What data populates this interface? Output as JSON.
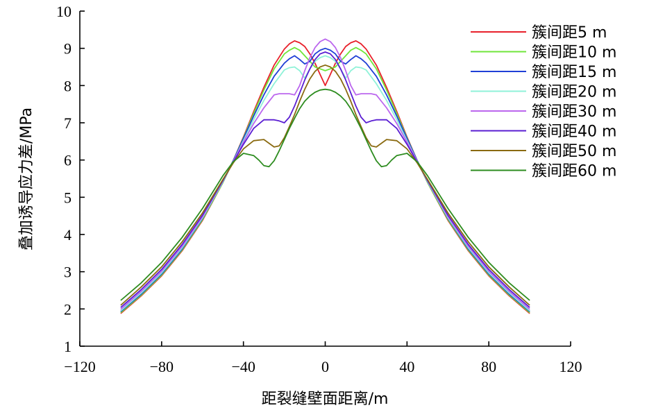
{
  "chart_data": {
    "type": "line",
    "title": "",
    "xlabel": "距裂缝壁面距离/m",
    "ylabel": "叠加诱导应力差/MPa",
    "xlim": [
      -120,
      120
    ],
    "ylim": [
      1,
      10
    ],
    "xticks": [
      -120,
      -80,
      -40,
      0,
      40,
      80,
      120
    ],
    "xtick_labels": [
      "−120",
      "−80",
      "−40",
      "0",
      "40",
      "80",
      "120"
    ],
    "yticks": [
      1,
      2,
      3,
      4,
      5,
      6,
      7,
      8,
      9,
      10
    ],
    "ytick_labels": [
      "1",
      "2",
      "3",
      "4",
      "5",
      "6",
      "7",
      "8",
      "9",
      "10"
    ],
    "grid": false,
    "legend_position": "top-right",
    "series": [
      {
        "name": "簇间距5 m",
        "color": "#e8202a",
        "x": [
          0,
          2.5,
          5,
          7.5,
          10,
          12.5,
          15,
          17.5,
          20,
          25,
          30,
          35,
          40,
          45,
          50,
          60,
          70,
          80,
          90,
          100
        ],
        "y": [
          8.0,
          8.3,
          8.6,
          8.85,
          9.05,
          9.15,
          9.2,
          9.12,
          8.98,
          8.55,
          7.95,
          7.3,
          6.62,
          5.98,
          5.4,
          4.38,
          3.56,
          2.89,
          2.35,
          1.88
        ]
      },
      {
        "name": "簇间距10 m",
        "color": "#6fe63a",
        "x": [
          0,
          2.5,
          5,
          7.5,
          10,
          12.5,
          15,
          17.5,
          20,
          25,
          30,
          35,
          40,
          45,
          50,
          60,
          70,
          80,
          90,
          100
        ],
        "y": [
          8.4,
          8.45,
          8.5,
          8.65,
          8.8,
          8.95,
          9.02,
          8.95,
          8.85,
          8.45,
          7.88,
          7.25,
          6.6,
          5.98,
          5.4,
          4.4,
          3.58,
          2.91,
          2.37,
          1.9
        ]
      },
      {
        "name": "簇间距15 m",
        "color": "#1f3fd6",
        "x": [
          0,
          2.5,
          5,
          7.5,
          10,
          12.5,
          15,
          17.5,
          20,
          25,
          30,
          35,
          40,
          45,
          50,
          60,
          70,
          80,
          90,
          100
        ],
        "y": [
          9.0,
          8.95,
          8.85,
          8.65,
          8.58,
          8.7,
          8.8,
          8.72,
          8.6,
          8.25,
          7.75,
          7.18,
          6.58,
          5.98,
          5.42,
          4.43,
          3.61,
          2.94,
          2.4,
          1.93
        ]
      },
      {
        "name": "簇间距20 m",
        "color": "#8ff2d8",
        "x": [
          0,
          2.5,
          5,
          7.5,
          10,
          12.5,
          15,
          17.5,
          20,
          25,
          30,
          35,
          40,
          45,
          50,
          60,
          70,
          80,
          90,
          100
        ],
        "y": [
          8.8,
          8.75,
          8.65,
          8.45,
          8.2,
          8.4,
          8.5,
          8.48,
          8.42,
          8.05,
          7.6,
          7.08,
          6.52,
          5.96,
          5.42,
          4.45,
          3.64,
          2.97,
          2.43,
          1.95
        ]
      },
      {
        "name": "簇间距30 m",
        "color": "#bb66ee",
        "x": [
          0,
          2.5,
          5,
          7.5,
          10,
          12.5,
          15,
          17.5,
          20,
          22.5,
          25,
          30,
          35,
          40,
          45,
          50,
          60,
          70,
          80,
          90,
          100
        ],
        "y": [
          9.25,
          9.18,
          9.02,
          8.75,
          8.4,
          8.0,
          7.75,
          7.78,
          7.78,
          7.78,
          7.75,
          7.4,
          6.98,
          6.48,
          5.96,
          5.44,
          4.48,
          3.68,
          3.01,
          2.47,
          1.99
        ]
      },
      {
        "name": "簇间距40 m",
        "color": "#5a1ed2",
        "x": [
          0,
          2.5,
          5,
          7.5,
          10,
          12.5,
          15,
          17.5,
          20,
          22.5,
          25,
          30,
          35,
          40,
          45,
          50,
          60,
          70,
          80,
          90,
          100
        ],
        "y": [
          8.9,
          8.85,
          8.7,
          8.45,
          8.15,
          7.8,
          7.45,
          7.15,
          7.0,
          7.05,
          7.08,
          7.08,
          6.85,
          6.42,
          5.94,
          5.45,
          4.52,
          3.73,
          3.06,
          2.52,
          2.04
        ]
      },
      {
        "name": "簇间距50 m",
        "color": "#8a6a10",
        "x": [
          0,
          2.5,
          5,
          7.5,
          10,
          12.5,
          15,
          17.5,
          20,
          22.5,
          25,
          27.5,
          30,
          35,
          40,
          45,
          50,
          60,
          70,
          80,
          90,
          100
        ],
        "y": [
          8.55,
          8.5,
          8.38,
          8.18,
          7.9,
          7.58,
          7.22,
          6.9,
          6.6,
          6.38,
          6.35,
          6.45,
          6.55,
          6.52,
          6.3,
          5.92,
          5.48,
          4.58,
          3.8,
          3.13,
          2.59,
          2.1
        ]
      },
      {
        "name": "簇间距60 m",
        "color": "#2d8c1f",
        "x": [
          0,
          2.5,
          5,
          7.5,
          10,
          12.5,
          15,
          17.5,
          20,
          22.5,
          25,
          27.5,
          30,
          32.5,
          35,
          40,
          45,
          50,
          60,
          70,
          80,
          90,
          100
        ],
        "y": [
          7.9,
          7.88,
          7.82,
          7.72,
          7.58,
          7.38,
          7.12,
          6.85,
          6.55,
          6.25,
          5.98,
          5.82,
          5.85,
          6.0,
          6.12,
          6.18,
          5.95,
          5.58,
          4.7,
          3.92,
          3.25,
          2.7,
          2.23
        ]
      }
    ]
  }
}
